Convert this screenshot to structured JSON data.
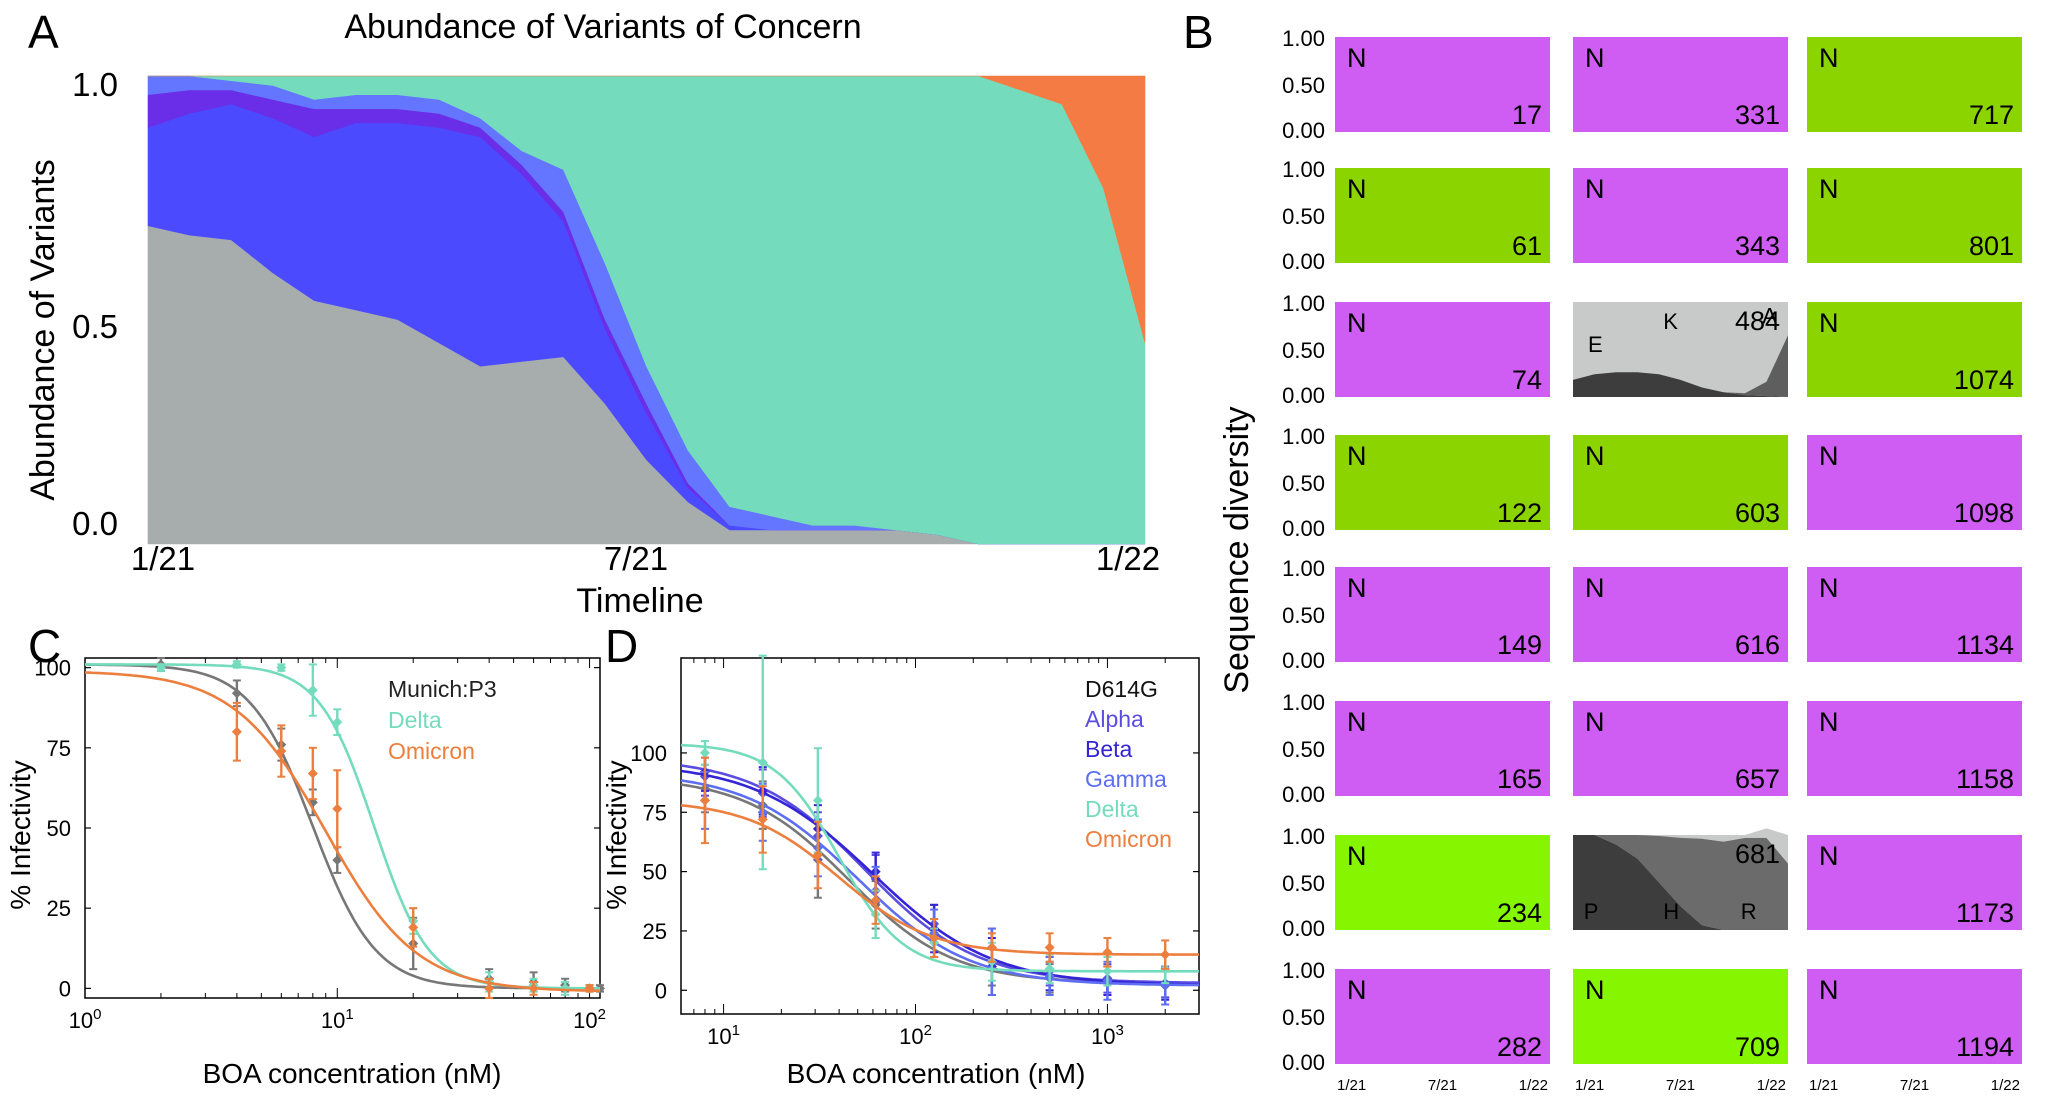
{
  "colors": {
    "magenta": "#cf5cf3",
    "green": "#8bd400",
    "bright_green": "#86f600",
    "munich": "#777777",
    "alpha": "#5a4de0",
    "beta": "#3524d6",
    "gamma": "#5d6ef2",
    "delta": "#74dcbd",
    "omicron": "#ec7f3e",
    "gray_area": "#a7adad",
    "blue_area": "#4b4aff",
    "purple_area": "#6a2ee8",
    "lightblue_area": "#6476ff",
    "teal_area": "#74dcbd",
    "orange_area": "#f47c44"
  },
  "panels": {
    "A": "A",
    "B": "B",
    "C": "C",
    "D": "D"
  },
  "chart_data": [
    {
      "panel": "A",
      "type": "area",
      "title": "Abundance of Variants of Concern",
      "xlabel": "Timeline",
      "ylabel": "Abundance of Variants",
      "xticks": [
        "1/21",
        "7/21",
        "1/22"
      ],
      "yticks": [
        "0.0",
        "0.5",
        "1.0"
      ],
      "ylim": [
        0,
        1
      ],
      "x": [
        0,
        0.5,
        1,
        1.5,
        2,
        2.5,
        3,
        3.5,
        4,
        4.5,
        5,
        5.5,
        6,
        6.5,
        7,
        7.5,
        8,
        8.5,
        9,
        9.5,
        10,
        10.5,
        11,
        11.5,
        12
      ],
      "series": [
        {
          "name": "gray",
          "color_key": "gray_area",
          "values": [
            0.68,
            0.66,
            0.65,
            0.58,
            0.52,
            0.5,
            0.48,
            0.43,
            0.38,
            0.39,
            0.4,
            0.3,
            0.18,
            0.09,
            0.03,
            0.03,
            0.03,
            0.03,
            0.03,
            0.02,
            0,
            0,
            0,
            0,
            0
          ]
        },
        {
          "name": "blue",
          "color_key": "blue_area",
          "values": [
            0.21,
            0.26,
            0.29,
            0.33,
            0.35,
            0.4,
            0.42,
            0.46,
            0.49,
            0.4,
            0.29,
            0.16,
            0.1,
            0.03,
            0.01,
            0,
            0,
            0,
            0,
            0,
            0,
            0,
            0,
            0,
            0
          ]
        },
        {
          "name": "purple",
          "color_key": "purple_area",
          "values": [
            0.07,
            0.05,
            0.03,
            0.04,
            0.06,
            0.03,
            0.03,
            0.03,
            0.02,
            0.02,
            0.02,
            0.02,
            0.02,
            0.01,
            0,
            0,
            0,
            0,
            0,
            0,
            0,
            0,
            0,
            0,
            0
          ]
        },
        {
          "name": "light blue",
          "color_key": "lightblue_area",
          "values": [
            0.04,
            0.03,
            0.02,
            0.03,
            0.02,
            0.03,
            0.03,
            0.03,
            0.02,
            0.03,
            0.09,
            0.12,
            0.08,
            0.07,
            0.04,
            0.03,
            0.01,
            0.01,
            0,
            0,
            0,
            0,
            0,
            0,
            0
          ]
        },
        {
          "name": "teal",
          "color_key": "teal_area",
          "values": [
            0,
            0,
            0.01,
            0.02,
            0.05,
            0.04,
            0.04,
            0.05,
            0.09,
            0.16,
            0.2,
            0.4,
            0.62,
            0.8,
            0.92,
            0.94,
            0.96,
            0.96,
            0.97,
            0.98,
            1,
            0.97,
            0.94,
            0.76,
            0.43
          ]
        },
        {
          "name": "orange",
          "color_key": "orange_area",
          "values": [
            0,
            0,
            0,
            0,
            0,
            0,
            0,
            0,
            0,
            0,
            0,
            0,
            0,
            0,
            0,
            0,
            0,
            0,
            0,
            0,
            0,
            0.03,
            0.06,
            0.24,
            0.57
          ]
        }
      ]
    },
    {
      "panel": "B",
      "type": "area",
      "ylabel": "Sequence diversity",
      "yticks": [
        "1.00",
        "0.50",
        "0.00"
      ],
      "xticks": [
        "1/21",
        "7/21",
        "1/22"
      ],
      "tiles": [
        [
          {
            "label": "N",
            "pos": "17",
            "color_key": "magenta"
          },
          {
            "label": "N",
            "pos": "331",
            "color_key": "magenta"
          },
          {
            "label": "N",
            "pos": "717",
            "color_key": "green"
          }
        ],
        [
          {
            "label": "N",
            "pos": "61",
            "color_key": "green"
          },
          {
            "label": "N",
            "pos": "343",
            "color_key": "magenta"
          },
          {
            "label": "N",
            "pos": "801",
            "color_key": "green"
          }
        ],
        [
          {
            "label": "N",
            "pos": "74",
            "color_key": "magenta"
          },
          {
            "label": "",
            "pos": "484",
            "color_key": "",
            "residues": [
              "E",
              "K",
              "A"
            ]
          },
          {
            "label": "N",
            "pos": "1074",
            "color_key": "green"
          }
        ],
        [
          {
            "label": "N",
            "pos": "122",
            "color_key": "green"
          },
          {
            "label": "N",
            "pos": "603",
            "color_key": "green"
          },
          {
            "label": "N",
            "pos": "1098",
            "color_key": "magenta"
          }
        ],
        [
          {
            "label": "N",
            "pos": "149",
            "color_key": "magenta"
          },
          {
            "label": "N",
            "pos": "616",
            "color_key": "magenta"
          },
          {
            "label": "N",
            "pos": "1134",
            "color_key": "magenta"
          }
        ],
        [
          {
            "label": "N",
            "pos": "165",
            "color_key": "magenta"
          },
          {
            "label": "N",
            "pos": "657",
            "color_key": "magenta"
          },
          {
            "label": "N",
            "pos": "1158",
            "color_key": "magenta"
          }
        ],
        [
          {
            "label": "N",
            "pos": "234",
            "color_key": "bright_green"
          },
          {
            "label": "",
            "pos": "681",
            "color_key": "",
            "residues": [
              "P",
              "H",
              "R"
            ]
          },
          {
            "label": "N",
            "pos": "1173",
            "color_key": "magenta"
          }
        ],
        [
          {
            "label": "N",
            "pos": "282",
            "color_key": "magenta"
          },
          {
            "label": "N",
            "pos": "709",
            "color_key": "bright_green"
          },
          {
            "label": "N",
            "pos": "1194",
            "color_key": "magenta"
          }
        ]
      ],
      "tile_484": {
        "x": [
          0,
          0.1,
          0.2,
          0.3,
          0.4,
          0.5,
          0.6,
          0.7,
          0.8,
          0.9,
          1
        ],
        "E": [
          0.18,
          0.24,
          0.26,
          0.26,
          0.24,
          0.18,
          0.1,
          0.05,
          0.02,
          0.01,
          0
        ],
        "K": [
          0,
          0,
          0,
          0,
          0,
          0,
          0,
          0,
          0,
          0,
          0
        ],
        "A": [
          0,
          0,
          0,
          0,
          0,
          0,
          0,
          0,
          0.02,
          0.15,
          0.65
        ]
      },
      "tile_681": {
        "x": [
          0,
          0.1,
          0.2,
          0.3,
          0.4,
          0.5,
          0.6,
          0.7,
          0.8,
          0.9,
          1
        ],
        "P": [
          1,
          1,
          0.9,
          0.75,
          0.5,
          0.25,
          0.05,
          0,
          0,
          0,
          0
        ],
        "H": [
          0,
          0,
          0.1,
          0.25,
          0.49,
          0.72,
          0.91,
          0.93,
          0.97,
          0.97,
          0.7
        ],
        "R": [
          0,
          0,
          0,
          0,
          0,
          0,
          0,
          0.02,
          0.03,
          0.1,
          0.3
        ]
      }
    },
    {
      "panel": "C",
      "type": "scatter",
      "xlabel": "BOA concentration (nM)",
      "ylabel": "% Infectivity",
      "xscale": "log",
      "xlim": [
        1,
        110
      ],
      "ylim": [
        -3,
        103
      ],
      "xticks": [
        {
          "base": "10",
          "exp": "0",
          "value": 1
        },
        {
          "base": "10",
          "exp": "1",
          "value": 10
        },
        {
          "base": "10",
          "exp": "2",
          "value": 100
        }
      ],
      "yticks": [
        "0",
        "25",
        "50",
        "75",
        "100"
      ],
      "legend": [
        "Munich:P3",
        "Delta",
        "Omicron"
      ],
      "series": [
        {
          "name": "Munich:P3",
          "color_key": "munich",
          "ic50": 8,
          "hill": 3.5,
          "top": 101,
          "bottom": 0,
          "points": [
            [
              2,
              101,
              2
            ],
            [
              4,
              92,
              4
            ],
            [
              6,
              76,
              5
            ],
            [
              8,
              58,
              4
            ],
            [
              10,
              40,
              4
            ],
            [
              20,
              14,
              8
            ],
            [
              40,
              3,
              3
            ],
            [
              60,
              2,
              3
            ],
            [
              80,
              1,
              2
            ],
            [
              100,
              0,
              1
            ],
            [
              110,
              0,
              1
            ]
          ]
        },
        {
          "name": "Delta",
          "color_key": "delta",
          "ic50": 14,
          "hill": 4,
          "top": 101,
          "bottom": 0,
          "points": [
            [
              2,
              100,
              1
            ],
            [
              4,
              101,
              1
            ],
            [
              6,
              100,
              1
            ],
            [
              8,
              93,
              8
            ],
            [
              10,
              83,
              4
            ],
            [
              20,
              21,
              4
            ],
            [
              40,
              2,
              3
            ],
            [
              60,
              1,
              2
            ],
            [
              80,
              0,
              2
            ],
            [
              100,
              0,
              1
            ]
          ]
        },
        {
          "name": "Omicron",
          "color_key": "omicron",
          "ic50": 9,
          "hill": 2.4,
          "top": 99,
          "bottom": -1,
          "points": [
            [
              4,
              80,
              9
            ],
            [
              6,
              74,
              8
            ],
            [
              8,
              67,
              8
            ],
            [
              10,
              56,
              12
            ],
            [
              20,
              19,
              6
            ],
            [
              40,
              0,
              3
            ],
            [
              60,
              0,
              2
            ],
            [
              100,
              0,
              1
            ]
          ]
        }
      ]
    },
    {
      "panel": "D",
      "type": "scatter",
      "xlabel": "BOA concentration (nM)",
      "ylabel": "% Infectivity",
      "xscale": "log",
      "xlim": [
        6,
        3000
      ],
      "ylim": [
        -10,
        140
      ],
      "xticks": [
        {
          "base": "10",
          "exp": "1",
          "value": 10
        },
        {
          "base": "10",
          "exp": "2",
          "value": 100
        },
        {
          "base": "10",
          "exp": "3",
          "value": 1000
        }
      ],
      "yticks": [
        "0",
        "25",
        "50",
        "75",
        "100"
      ],
      "legend": [
        "D614G",
        "Alpha",
        "Beta",
        "Gamma",
        "Delta",
        "Omicron"
      ],
      "series": [
        {
          "name": "D614G",
          "color_key": "munich",
          "ic50": 45,
          "hill": 1.6,
          "top": 90,
          "bottom": 3,
          "points": [
            [
              8,
              85,
              10
            ],
            [
              16,
              78,
              10
            ],
            [
              31,
              55,
              16
            ],
            [
              62,
              36,
              10
            ],
            [
              125,
              22,
              8
            ],
            [
              250,
              10,
              8
            ],
            [
              500,
              5,
              6
            ],
            [
              1000,
              4,
              6
            ],
            [
              2000,
              3,
              6
            ]
          ]
        },
        {
          "name": "Alpha",
          "color_key": "alpha",
          "ic50": 55,
          "hill": 1.5,
          "top": 98,
          "bottom": 3,
          "points": [
            [
              8,
              90,
              8
            ],
            [
              16,
              83,
              10
            ],
            [
              31,
              65,
              10
            ],
            [
              62,
              47,
              10
            ],
            [
              125,
              28,
              8
            ],
            [
              250,
              18,
              8
            ],
            [
              500,
              8,
              6
            ],
            [
              1000,
              5,
              6
            ],
            [
              2000,
              3,
              6
            ]
          ]
        },
        {
          "name": "Beta",
          "color_key": "beta",
          "ic50": 60,
          "hill": 1.4,
          "top": 96,
          "bottom": 2,
          "points": [
            [
              8,
              92,
              8
            ],
            [
              16,
              84,
              10
            ],
            [
              31,
              68,
              10
            ],
            [
              62,
              50,
              8
            ],
            [
              125,
              26,
              10
            ],
            [
              250,
              10,
              12
            ],
            [
              500,
              6,
              6
            ],
            [
              1000,
              4,
              6
            ],
            [
              2000,
              2,
              6
            ]
          ]
        },
        {
          "name": "Gamma",
          "color_key": "gamma",
          "ic50": 50,
          "hill": 1.5,
          "top": 92,
          "bottom": 2,
          "points": [
            [
              8,
              80,
              12
            ],
            [
              16,
              75,
              12
            ],
            [
              31,
              60,
              12
            ],
            [
              62,
              42,
              10
            ],
            [
              125,
              24,
              10
            ],
            [
              250,
              12,
              14
            ],
            [
              500,
              6,
              8
            ],
            [
              1000,
              4,
              8
            ],
            [
              2000,
              2,
              8
            ]
          ]
        },
        {
          "name": "Delta",
          "color_key": "delta",
          "ic50": 40,
          "hill": 2.6,
          "top": 104,
          "bottom": 8,
          "points": [
            [
              8,
              100,
              5
            ],
            [
              16,
              96,
              45
            ],
            [
              31,
              80,
              22
            ],
            [
              62,
              32,
              10
            ],
            [
              125,
              20,
              6
            ],
            [
              250,
              12,
              8
            ],
            [
              500,
              9,
              6
            ],
            [
              1000,
              8,
              6
            ],
            [
              2000,
              9,
              6
            ]
          ]
        },
        {
          "name": "Omicron",
          "color_key": "omicron",
          "ic50": 40,
          "hill": 1.8,
          "top": 80,
          "bottom": 15,
          "points": [
            [
              8,
              80,
              18
            ],
            [
              16,
              72,
              14
            ],
            [
              31,
              57,
              14
            ],
            [
              62,
              38,
              10
            ],
            [
              125,
              22,
              8
            ],
            [
              250,
              18,
              6
            ],
            [
              500,
              18,
              6
            ],
            [
              1000,
              16,
              6
            ],
            [
              2000,
              15,
              6
            ]
          ]
        }
      ]
    }
  ]
}
